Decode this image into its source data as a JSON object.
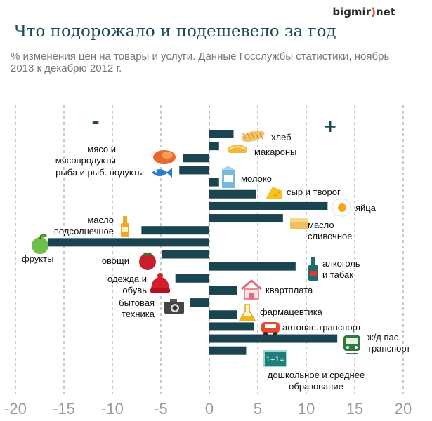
{
  "brand": {
    "name_a": "bigmir",
    "paren": ")",
    "name_b": "net"
  },
  "title": "Что подорожало и подешевело за год",
  "subtitle_line1": "% изменения цен на товары и услуги. Данные Госслужбы статистики, ноябрь",
  "subtitle_line2": "2013 к декабрю 2012 г.",
  "colors": {
    "bar": "#1a4550",
    "title": "#1e4a57",
    "grid": "#999999",
    "ticks": "#9a9a9a"
  },
  "chart_data": {
    "type": "bar",
    "orientation": "horizontal",
    "xlim": [
      -20,
      20
    ],
    "xticks": [
      -20,
      -15,
      -10,
      -5,
      0,
      5,
      10,
      15,
      20
    ],
    "sign_minus": "-",
    "sign_plus": "+",
    "categories": [
      {
        "name": "хлеб",
        "label_lines": [
          "хлеб"
        ],
        "value": 2.5,
        "icon": "bread-icon"
      },
      {
        "name": "макароны",
        "label_lines": [
          "макароны"
        ],
        "value": 1.0,
        "icon": "pasta-icon"
      },
      {
        "name": "мясо и мясопродукты",
        "label_lines": [
          "мясо и",
          "мясопродукты"
        ],
        "value": -2.7,
        "icon": "chicken-icon"
      },
      {
        "name": "рыба и рыб. подукты",
        "label_lines": [
          "рыба и рыб. подукты"
        ],
        "value": -3.1,
        "icon": "fish-icon"
      },
      {
        "name": "молоко",
        "label_lines": [
          "молоко"
        ],
        "value": 1.0,
        "icon": "milk-icon"
      },
      {
        "name": "сыр и творог",
        "label_lines": [
          "сыр и творог"
        ],
        "value": 4.8,
        "icon": "cheese-icon"
      },
      {
        "name": "яйца",
        "label_lines": [
          "яйца"
        ],
        "value": 12.2,
        "icon": "egg-icon"
      },
      {
        "name": "масло сливочное",
        "label_lines": [
          "масло",
          "сливочное"
        ],
        "value": 7.6,
        "icon": "butter-icon"
      },
      {
        "name": "масло подсолнечное",
        "label_lines": [
          "масло",
          "подсолнечное"
        ],
        "value": -7.0,
        "icon": "oil-bottle-icon"
      },
      {
        "name": "фрукты",
        "label_lines": [
          "фрукты"
        ],
        "value": -16.6,
        "icon": "apple-icon"
      },
      {
        "name": "овощи",
        "label_lines": [
          "овощи"
        ],
        "value": -4.9,
        "icon": "tomato-icon"
      },
      {
        "name": "алкоголь и табак",
        "label_lines": [
          "алкоголь",
          "и табак"
        ],
        "value": 8.9,
        "icon": "bottle-icon"
      },
      {
        "name": "одежда и обувь",
        "label_lines": [
          "одежда и",
          "обувь"
        ],
        "value": -3.5,
        "icon": "hat-icon"
      },
      {
        "name": "квартплата",
        "label_lines": [
          "квартплата"
        ],
        "value": 2.9,
        "icon": "house-icon"
      },
      {
        "name": "бытовая техника",
        "label_lines": [
          "бытовая",
          "техника"
        ],
        "value": -2.0,
        "icon": "camera-icon"
      },
      {
        "name": "фармацевтика",
        "label_lines": [
          "фармацевтика"
        ],
        "value": 2.9,
        "icon": "flask-icon"
      },
      {
        "name": "автопас.транспорт",
        "label_lines": [
          "автопас.транспорт"
        ],
        "value": 4.6,
        "icon": "car-icon"
      },
      {
        "name": "ж/д пас. транспорт",
        "label_lines": [
          "ж/д пас.",
          "транспорт"
        ],
        "value": 13.2,
        "icon": "train-icon"
      },
      {
        "name": "дошкольное и среднее образование",
        "label_lines": [
          "дошкольное и среднее",
          "образование"
        ],
        "value": 3.8,
        "icon": "blackboard-icon"
      }
    ]
  }
}
